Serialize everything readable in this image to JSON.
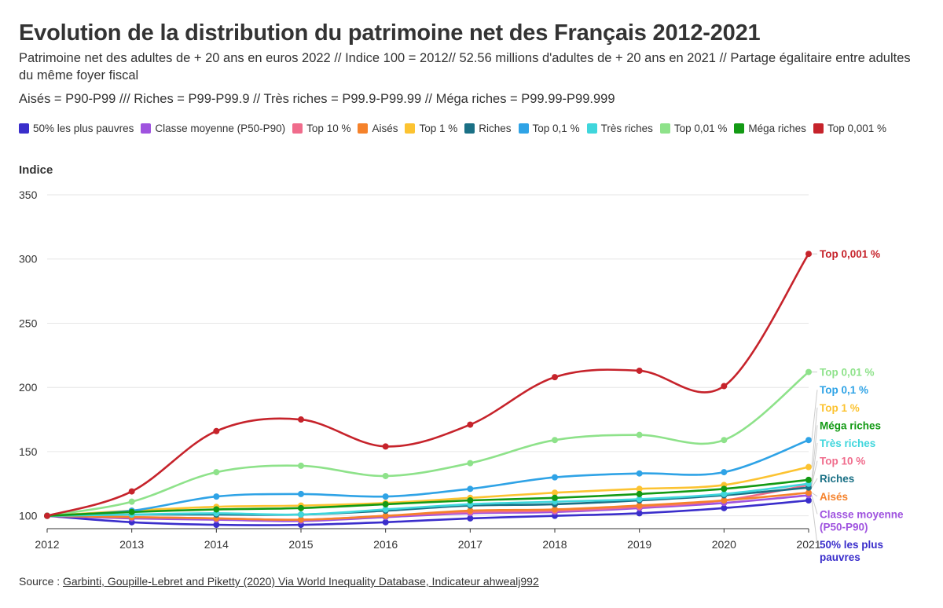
{
  "header": {
    "title": "Evolution de la distribution du patrimoine net des Français 2012-2021",
    "subtitle": "Patrimoine net des adultes de + 20 ans en euros 2022 // Indice 100 = 2012// 52.56 millions d'adultes de + 20 ans en 2021 // Partage égalitaire entre adultes du même foyer fiscal",
    "subtitle2": "Aisés = P90-P99 /// Riches = P99-P99.9 // Très riches = P99.9-P99.99 // Méga riches = P99.99-P99.999"
  },
  "source": {
    "prefix": "Source : ",
    "link_text": "Garbinti, Goupille-Lebret and Piketty (2020) Via World Inequality Database, Indicateur ahwealj992"
  },
  "chart_data": {
    "type": "line",
    "ylabel": "Indice",
    "ylim": [
      90,
      350
    ],
    "yticks": [
      100,
      150,
      200,
      250,
      300,
      350
    ],
    "x": [
      "2012",
      "2013",
      "2014",
      "2015",
      "2016",
      "2017",
      "2018",
      "2019",
      "2020",
      "2021"
    ],
    "x_tick_labels": [
      "2012",
      "2013",
      "2014",
      "2015",
      "2016",
      "2017",
      "2018",
      "2019",
      "2020",
      "2021"
    ],
    "grid": true,
    "legend_position": "top",
    "series": [
      {
        "name": "50% les plus pauvres",
        "end_label": "50% les plus pauvres",
        "color": "#3a2ecb",
        "values": [
          100,
          95,
          93,
          93,
          95,
          98,
          100,
          102,
          106,
          112
        ]
      },
      {
        "name": "Classe moyenne (P50-P90)",
        "end_label": "Classe moyenne (P50-P90)",
        "color": "#9f53df",
        "values": [
          100,
          98,
          97,
          96,
          99,
          102,
          103,
          106,
          110,
          116
        ]
      },
      {
        "name": "Top 10 %",
        "end_label": "Top 10 %",
        "color": "#f06c8c",
        "values": [
          100,
          99,
          98,
          97,
          100,
          103,
          104,
          107,
          112,
          124
        ]
      },
      {
        "name": "Aisés",
        "end_label": "Aisés",
        "color": "#f5822b",
        "values": [
          100,
          99,
          98,
          97,
          100,
          104,
          105,
          108,
          112,
          118
        ]
      },
      {
        "name": "Top 1 %",
        "end_label": "Top 1 %",
        "color": "#fcc331",
        "values": [
          100,
          104,
          107,
          108,
          110,
          114,
          118,
          121,
          124,
          138
        ]
      },
      {
        "name": "Riches",
        "end_label": "Riches",
        "color": "#1a7085",
        "values": [
          100,
          101,
          101,
          101,
          104,
          108,
          109,
          112,
          116,
          122
        ]
      },
      {
        "name": "Top 0,1 %",
        "end_label": "Top 0,1 %",
        "color": "#2fa3e6",
        "values": [
          100,
          104,
          115,
          117,
          115,
          121,
          130,
          133,
          134,
          159
        ]
      },
      {
        "name": "Très riches",
        "end_label": "Très riches",
        "color": "#3fd6dc",
        "values": [
          100,
          101,
          102,
          101,
          105,
          109,
          111,
          113,
          117,
          125
        ]
      },
      {
        "name": "Top 0,01 %",
        "end_label": "Top 0,01 %",
        "color": "#8ee28a",
        "values": [
          100,
          111,
          134,
          139,
          131,
          141,
          159,
          163,
          159,
          212
        ]
      },
      {
        "name": "Méga riches",
        "end_label": "Méga riches",
        "color": "#139a14",
        "values": [
          100,
          103,
          105,
          106,
          109,
          112,
          114,
          117,
          121,
          128
        ]
      },
      {
        "name": "Top 0,001 %",
        "end_label": "Top 0,001 %",
        "color": "#c6232b",
        "values": [
          100,
          119,
          166,
          175,
          154,
          171,
          208,
          213,
          201,
          304
        ]
      }
    ]
  }
}
